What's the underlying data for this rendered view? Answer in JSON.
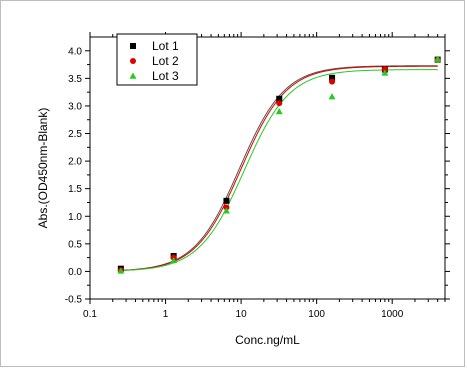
{
  "chart_data": {
    "type": "scatter",
    "title": "",
    "xlabel": "Conc.ng/mL",
    "ylabel": "Abs.(OD450nm-Blank)",
    "x_scale": "log",
    "xlim": [
      0.1,
      5000
    ],
    "ylim": [
      -0.5,
      4.25
    ],
    "x_ticks": [
      0.1,
      1,
      10,
      100,
      1000
    ],
    "x_tick_labels": [
      "0.1",
      "1",
      "10",
      "100",
      "1000"
    ],
    "y_ticks": [
      -0.5,
      0.0,
      0.5,
      1.0,
      1.5,
      2.0,
      2.5,
      3.0,
      3.5,
      4.0
    ],
    "y_tick_labels": [
      "-0.5",
      "0.0",
      "0.5",
      "1.0",
      "1.5",
      "2.0",
      "2.5",
      "3.0",
      "3.5",
      "4.0"
    ],
    "grid": false,
    "legend_position": "top-left",
    "series": [
      {
        "name": "Lot 1",
        "marker": "square",
        "color": "#000000",
        "x": [
          0.256,
          1.28,
          6.4,
          32,
          160,
          800,
          4000
        ],
        "y": [
          0.05,
          0.28,
          1.28,
          3.13,
          3.51,
          3.66,
          3.84
        ],
        "fit": {
          "bottom": 0.0,
          "top": 3.73,
          "ec50": 9.5,
          "hill": 1.45
        },
        "fit_color": "#555555"
      },
      {
        "name": "Lot 2",
        "marker": "circle",
        "color": "#e00000",
        "x": [
          0.256,
          1.28,
          6.4,
          32,
          160,
          800,
          4000
        ],
        "y": [
          0.02,
          0.25,
          1.16,
          3.05,
          3.44,
          3.66,
          3.84
        ],
        "fit": {
          "bottom": 0.0,
          "top": 3.72,
          "ec50": 10.0,
          "hill": 1.45
        },
        "fit_color": "#e00000"
      },
      {
        "name": "Lot 3",
        "marker": "triangle",
        "color": "#22cc22",
        "x": [
          0.256,
          1.28,
          6.4,
          32,
          160,
          800,
          4000
        ],
        "y": [
          0.01,
          0.2,
          1.1,
          2.9,
          3.17,
          3.6,
          3.85
        ],
        "fit": {
          "bottom": 0.0,
          "top": 3.66,
          "ec50": 11.0,
          "hill": 1.45
        },
        "fit_color": "#22cc22"
      }
    ]
  }
}
